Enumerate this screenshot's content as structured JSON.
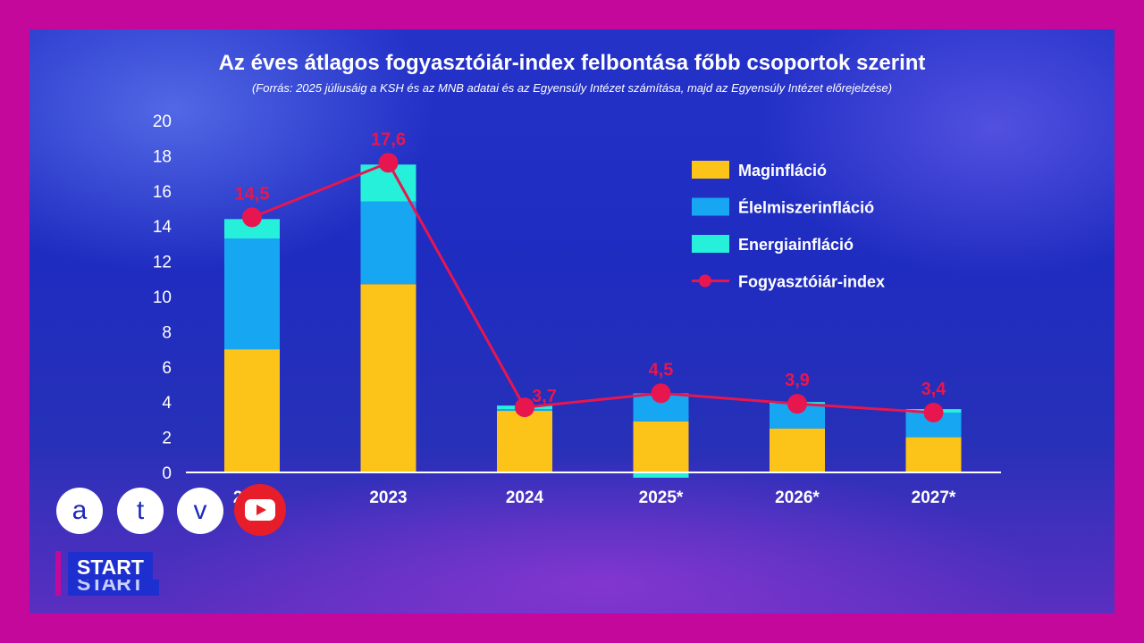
{
  "chart_data": {
    "type": "bar",
    "stacked": true,
    "title": "Az éves átlagos fogyasztóiár-index felbontása főbb csoportok szerint",
    "subtitle": "(Forrás: 2025 júliusáig a KSH és az MNB adatai és az Egyensúly Intézet számítása, majd az Egyensúly Intézet előrejelzése)",
    "categories": [
      "2022",
      "2023",
      "2024",
      "2025*",
      "2026*",
      "2027*"
    ],
    "ylim": [
      0,
      20
    ],
    "yticks": [
      "0",
      "2",
      "4",
      "6",
      "8",
      "10",
      "12",
      "14",
      "16",
      "18",
      "20"
    ],
    "series": [
      {
        "name": "Maginfláció",
        "color": "#fcc419",
        "values": [
          7.0,
          10.7,
          3.5,
          2.9,
          2.5,
          2.0
        ]
      },
      {
        "name": "Élelmiszerinfláció",
        "color": "#17a6f2",
        "values": [
          6.3,
          4.7,
          0.1,
          1.6,
          1.4,
          1.4
        ]
      },
      {
        "name": "Energiainfláció",
        "color": "#26f0da",
        "values": [
          1.1,
          2.1,
          0.2,
          -0.3,
          0.1,
          0.2
        ]
      }
    ],
    "line": {
      "name": "Fogyasztóiár-index",
      "color": "#e8164f",
      "values": [
        14.5,
        17.6,
        3.7,
        4.5,
        3.9,
        3.4
      ],
      "labels": [
        "14,5",
        "17,6",
        "3,7",
        "4,5",
        "3,9",
        "3,4"
      ]
    },
    "legend_position": "top-right",
    "grid": false
  },
  "overlay": {
    "logo_letters": [
      "a",
      "t",
      "v"
    ],
    "youtube": "youtube-icon",
    "start_label": "START"
  }
}
